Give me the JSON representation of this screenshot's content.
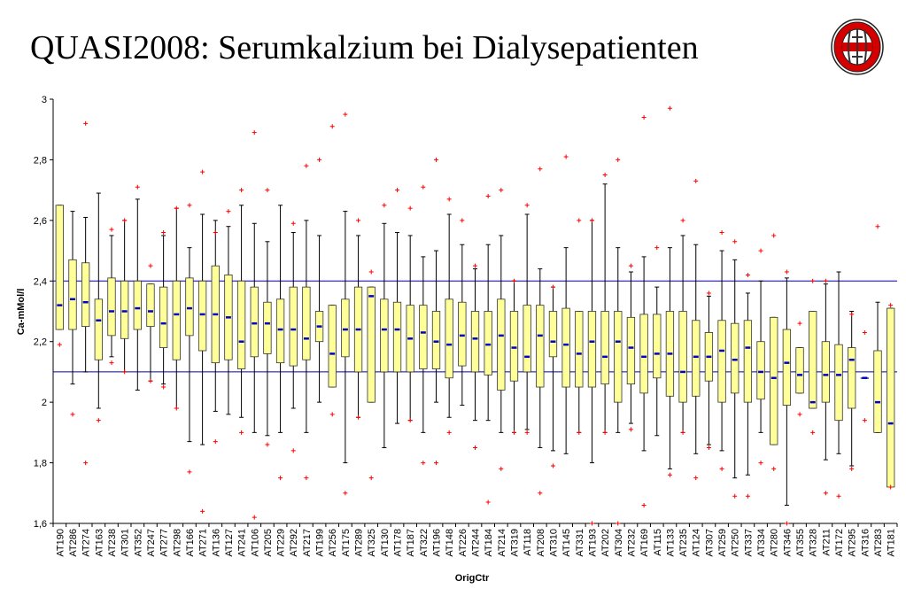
{
  "page": {
    "title": "QUASI2008: Serumkalzium bei Dialysepatienten"
  },
  "logo": {
    "icon": "hospital-logo-icon",
    "colors": [
      "#d40000",
      "#ffffff",
      "#404040"
    ]
  },
  "chart_data": {
    "type": "boxplot",
    "xlabel": "OrigCtr",
    "ylabel": "Ca-mMol/l",
    "ylim": [
      1.6,
      3.0
    ],
    "yticks": [
      1.6,
      1.8,
      2.0,
      2.2,
      2.4,
      2.6,
      2.8,
      3.0
    ],
    "ytick_labels": [
      "1,6",
      "1,8",
      "2",
      "2,2",
      "2,4",
      "2,6",
      "2,8",
      "3"
    ],
    "reference_lines": [
      2.1,
      2.4
    ],
    "grid": false,
    "colors": {
      "box_fill": "#ffff99",
      "box_stroke": "#333333",
      "median": "#0000cc",
      "outlier": "#ff0000",
      "reference_line": "#0000aa"
    },
    "categories": [
      "AT190",
      "AT286",
      "AT274",
      "AT163",
      "AT238",
      "AT301",
      "AT352",
      "AT247",
      "AT277",
      "AT298",
      "AT166",
      "AT271",
      "AT136",
      "AT127",
      "AT241",
      "AT106",
      "AT205",
      "AT229",
      "AT292",
      "AT217",
      "AT199",
      "AT256",
      "AT175",
      "AT289",
      "AT325",
      "AT130",
      "AT178",
      "AT187",
      "AT322",
      "AT196",
      "AT148",
      "AT226",
      "AT244",
      "AT184",
      "AT214",
      "AT319",
      "AT118",
      "AT208",
      "AT310",
      "AT145",
      "AT331",
      "AT193",
      "AT202",
      "AT304",
      "AT232",
      "AT169",
      "AT115",
      "AT133",
      "AT235",
      "AT124",
      "AT307",
      "AT259",
      "AT250",
      "AT337",
      "AT334",
      "AT280",
      "AT346",
      "AT355",
      "AT328",
      "AT211",
      "AT172",
      "AT295",
      "AT316",
      "AT283",
      "AT181"
    ],
    "boxes": [
      {
        "whislo": 2.24,
        "q1": 2.24,
        "med": 2.32,
        "q3": 2.65,
        "whishi": 2.65,
        "fliers": [
          2.19
        ]
      },
      {
        "whislo": 2.06,
        "q1": 2.24,
        "med": 2.34,
        "q3": 2.47,
        "whishi": 2.63,
        "fliers": [
          1.96
        ]
      },
      {
        "whislo": 2.1,
        "q1": 2.25,
        "med": 2.33,
        "q3": 2.46,
        "whishi": 2.61,
        "fliers": [
          2.92,
          1.8
        ]
      },
      {
        "whislo": 1.98,
        "q1": 2.14,
        "med": 2.27,
        "q3": 2.34,
        "whishi": 2.69,
        "fliers": [
          1.94
        ]
      },
      {
        "whislo": 2.15,
        "q1": 2.22,
        "med": 2.3,
        "q3": 2.41,
        "whishi": 2.55,
        "fliers": [
          2.57,
          2.13
        ]
      },
      {
        "whislo": 2.1,
        "q1": 2.21,
        "med": 2.3,
        "q3": 2.4,
        "whishi": 2.6,
        "fliers": [
          2.6,
          2.1
        ]
      },
      {
        "whislo": 2.04,
        "q1": 2.24,
        "med": 2.31,
        "q3": 2.4,
        "whishi": 2.67,
        "fliers": [
          2.71
        ]
      },
      {
        "whislo": 2.07,
        "q1": 2.25,
        "med": 2.3,
        "q3": 2.39,
        "whishi": 2.39,
        "fliers": [
          2.45,
          2.07
        ]
      },
      {
        "whislo": 2.06,
        "q1": 2.18,
        "med": 2.26,
        "q3": 2.38,
        "whishi": 2.55,
        "fliers": [
          2.56,
          2.05
        ]
      },
      {
        "whislo": 1.98,
        "q1": 2.14,
        "med": 2.29,
        "q3": 2.4,
        "whishi": 2.64,
        "fliers": [
          2.64,
          1.98
        ]
      },
      {
        "whislo": 1.87,
        "q1": 2.22,
        "med": 2.31,
        "q3": 2.41,
        "whishi": 2.51,
        "fliers": [
          2.65,
          1.77
        ]
      },
      {
        "whislo": 1.86,
        "q1": 2.17,
        "med": 2.29,
        "q3": 2.4,
        "whishi": 2.62,
        "fliers": [
          2.76,
          1.64
        ]
      },
      {
        "whislo": 1.97,
        "q1": 2.13,
        "med": 2.29,
        "q3": 2.45,
        "whishi": 2.6,
        "fliers": [
          2.56,
          1.87
        ]
      },
      {
        "whislo": 1.96,
        "q1": 2.14,
        "med": 2.28,
        "q3": 2.42,
        "whishi": 2.58,
        "fliers": [
          2.63
        ]
      },
      {
        "whislo": 1.95,
        "q1": 2.11,
        "med": 2.2,
        "q3": 2.4,
        "whishi": 2.65,
        "fliers": [
          2.7,
          1.9
        ]
      },
      {
        "whislo": 1.9,
        "q1": 2.15,
        "med": 2.26,
        "q3": 2.38,
        "whishi": 2.59,
        "fliers": [
          2.89,
          1.62
        ]
      },
      {
        "whislo": 1.89,
        "q1": 2.16,
        "med": 2.26,
        "q3": 2.33,
        "whishi": 2.53,
        "fliers": [
          2.7,
          1.86
        ]
      },
      {
        "whislo": 1.9,
        "q1": 2.13,
        "med": 2.24,
        "q3": 2.34,
        "whishi": 2.65,
        "fliers": [
          1.75
        ]
      },
      {
        "whislo": 1.98,
        "q1": 2.12,
        "med": 2.24,
        "q3": 2.38,
        "whishi": 2.56,
        "fliers": [
          2.59,
          1.84
        ]
      },
      {
        "whislo": 1.9,
        "q1": 2.14,
        "med": 2.21,
        "q3": 2.38,
        "whishi": 2.6,
        "fliers": [
          2.78,
          1.75
        ]
      },
      {
        "whislo": 2.0,
        "q1": 2.2,
        "med": 2.25,
        "q3": 2.3,
        "whishi": 2.55,
        "fliers": [
          2.8
        ]
      },
      {
        "whislo": 2.05,
        "q1": 2.05,
        "med": 2.16,
        "q3": 2.32,
        "whishi": 2.32,
        "fliers": [
          2.91,
          1.96
        ]
      },
      {
        "whislo": 1.8,
        "q1": 2.15,
        "med": 2.24,
        "q3": 2.34,
        "whishi": 2.63,
        "fliers": [
          2.95,
          1.7
        ]
      },
      {
        "whislo": 1.95,
        "q1": 2.1,
        "med": 2.24,
        "q3": 2.38,
        "whishi": 2.55,
        "fliers": [
          2.6,
          1.95
        ]
      },
      {
        "whislo": 2.0,
        "q1": 2.0,
        "med": 2.35,
        "q3": 2.38,
        "whishi": 2.38,
        "fliers": [
          2.43,
          1.75
        ]
      },
      {
        "whislo": 1.85,
        "q1": 2.1,
        "med": 2.24,
        "q3": 2.34,
        "whishi": 2.59,
        "fliers": [
          2.65
        ]
      },
      {
        "whislo": 1.93,
        "q1": 2.1,
        "med": 2.24,
        "q3": 2.33,
        "whishi": 2.56,
        "fliers": [
          2.7
        ]
      },
      {
        "whislo": 1.94,
        "q1": 2.1,
        "med": 2.21,
        "q3": 2.32,
        "whishi": 2.55,
        "fliers": [
          2.64,
          1.94
        ]
      },
      {
        "whislo": 1.9,
        "q1": 2.11,
        "med": 2.23,
        "q3": 2.32,
        "whishi": 2.48,
        "fliers": [
          2.71,
          1.8
        ]
      },
      {
        "whislo": 2.0,
        "q1": 2.11,
        "med": 2.2,
        "q3": 2.3,
        "whishi": 2.5,
        "fliers": [
          2.8,
          1.8
        ]
      },
      {
        "whislo": 1.95,
        "q1": 2.08,
        "med": 2.19,
        "q3": 2.34,
        "whishi": 2.62,
        "fliers": [
          2.67,
          1.9
        ]
      },
      {
        "whislo": 1.99,
        "q1": 2.12,
        "med": 2.22,
        "q3": 2.33,
        "whishi": 2.52,
        "fliers": [
          2.6
        ]
      },
      {
        "whislo": 1.94,
        "q1": 2.1,
        "med": 2.21,
        "q3": 2.3,
        "whishi": 2.44,
        "fliers": [
          2.45,
          1.85
        ]
      },
      {
        "whislo": 1.94,
        "q1": 2.09,
        "med": 2.19,
        "q3": 2.3,
        "whishi": 2.52,
        "fliers": [
          2.68,
          1.67
        ]
      },
      {
        "whislo": 1.9,
        "q1": 2.04,
        "med": 2.22,
        "q3": 2.34,
        "whishi": 2.55,
        "fliers": [
          2.7,
          1.78
        ]
      },
      {
        "whislo": 1.9,
        "q1": 2.07,
        "med": 2.18,
        "q3": 2.3,
        "whishi": 2.4,
        "fliers": [
          2.4,
          1.9
        ]
      },
      {
        "whislo": 1.91,
        "q1": 2.1,
        "med": 2.15,
        "q3": 2.32,
        "whishi": 2.62,
        "fliers": [
          2.65,
          1.9
        ]
      },
      {
        "whislo": 1.85,
        "q1": 2.05,
        "med": 2.22,
        "q3": 2.32,
        "whishi": 2.44,
        "fliers": [
          2.77,
          1.7
        ]
      },
      {
        "whislo": 1.84,
        "q1": 2.15,
        "med": 2.2,
        "q3": 2.3,
        "whishi": 2.38,
        "fliers": [
          2.38,
          1.79
        ]
      },
      {
        "whislo": 1.83,
        "q1": 2.05,
        "med": 2.19,
        "q3": 2.31,
        "whishi": 2.51,
        "fliers": [
          2.81
        ]
      },
      {
        "whislo": 1.9,
        "q1": 2.05,
        "med": 2.16,
        "q3": 2.3,
        "whishi": 2.3,
        "fliers": [
          2.6,
          1.9
        ]
      },
      {
        "whislo": 1.8,
        "q1": 2.05,
        "med": 2.2,
        "q3": 2.3,
        "whishi": 2.6,
        "fliers": [
          2.6,
          1.6
        ]
      },
      {
        "whislo": 1.9,
        "q1": 2.06,
        "med": 2.15,
        "q3": 2.3,
        "whishi": 2.72,
        "fliers": [
          2.75,
          1.9
        ]
      },
      {
        "whislo": 1.9,
        "q1": 2.0,
        "med": 2.2,
        "q3": 2.3,
        "whishi": 2.51,
        "fliers": [
          2.8,
          1.6
        ]
      },
      {
        "whislo": 1.93,
        "q1": 2.06,
        "med": 2.18,
        "q3": 2.28,
        "whishi": 2.43,
        "fliers": [
          2.45,
          1.91
        ]
      },
      {
        "whislo": 1.84,
        "q1": 2.03,
        "med": 2.15,
        "q3": 2.29,
        "whishi": 2.48,
        "fliers": [
          2.94,
          1.66
        ]
      },
      {
        "whislo": 1.89,
        "q1": 2.08,
        "med": 2.16,
        "q3": 2.29,
        "whishi": 2.38,
        "fliers": [
          2.51
        ]
      },
      {
        "whislo": 1.78,
        "q1": 2.02,
        "med": 2.16,
        "q3": 2.3,
        "whishi": 2.51,
        "fliers": [
          2.97,
          1.76
        ]
      },
      {
        "whislo": 1.9,
        "q1": 2.0,
        "med": 2.1,
        "q3": 2.3,
        "whishi": 2.55,
        "fliers": [
          2.6,
          1.9
        ]
      },
      {
        "whislo": 1.83,
        "q1": 2.02,
        "med": 2.15,
        "q3": 2.27,
        "whishi": 2.52,
        "fliers": [
          2.73,
          1.75
        ]
      },
      {
        "whislo": 1.86,
        "q1": 2.07,
        "med": 2.15,
        "q3": 2.23,
        "whishi": 2.35,
        "fliers": [
          2.36,
          1.85
        ]
      },
      {
        "whislo": 1.84,
        "q1": 2.0,
        "med": 2.17,
        "q3": 2.27,
        "whishi": 2.5,
        "fliers": [
          2.56,
          1.78
        ]
      },
      {
        "whislo": 1.75,
        "q1": 2.03,
        "med": 2.14,
        "q3": 2.26,
        "whishi": 2.47,
        "fliers": [
          2.53,
          1.69
        ]
      },
      {
        "whislo": 1.76,
        "q1": 2.0,
        "med": 2.18,
        "q3": 2.27,
        "whishi": 2.36,
        "fliers": [
          2.42,
          1.69
        ]
      },
      {
        "whislo": 1.9,
        "q1": 2.01,
        "med": 2.1,
        "q3": 2.2,
        "whishi": 2.4,
        "fliers": [
          2.5,
          1.8
        ]
      },
      {
        "whislo": 1.86,
        "q1": 1.86,
        "med": 2.08,
        "q3": 2.28,
        "whishi": 2.28,
        "fliers": [
          2.55,
          1.78
        ]
      },
      {
        "whislo": 1.66,
        "q1": 1.99,
        "med": 2.13,
        "q3": 2.24,
        "whishi": 2.41,
        "fliers": [
          2.43,
          1.6
        ]
      },
      {
        "whislo": 2.03,
        "q1": 2.03,
        "med": 2.09,
        "q3": 2.18,
        "whishi": 2.18,
        "fliers": [
          2.26,
          1.96
        ]
      },
      {
        "whislo": 1.98,
        "q1": 1.98,
        "med": 2.0,
        "q3": 2.3,
        "whishi": 2.3,
        "fliers": [
          2.4,
          1.9
        ]
      },
      {
        "whislo": 1.81,
        "q1": 2.0,
        "med": 2.09,
        "q3": 2.2,
        "whishi": 2.39,
        "fliers": [
          2.4,
          1.7
        ]
      },
      {
        "whislo": 1.83,
        "q1": 1.94,
        "med": 2.09,
        "q3": 2.19,
        "whishi": 2.43,
        "fliers": [
          1.69
        ]
      },
      {
        "whislo": 1.79,
        "q1": 1.98,
        "med": 2.14,
        "q3": 2.18,
        "whishi": 2.3,
        "fliers": [
          2.29,
          1.78
        ]
      },
      {
        "whislo": 2.08,
        "q1": 2.08,
        "med": 2.08,
        "q3": 2.08,
        "whishi": 2.08,
        "fliers": [
          2.23,
          1.94
        ]
      },
      {
        "whislo": 1.9,
        "q1": 1.9,
        "med": 2.0,
        "q3": 2.17,
        "whishi": 2.33,
        "fliers": [
          2.58
        ]
      },
      {
        "whislo": 1.72,
        "q1": 1.72,
        "med": 1.93,
        "q3": 2.31,
        "whishi": 2.31,
        "fliers": [
          2.32,
          1.72
        ]
      }
    ]
  }
}
